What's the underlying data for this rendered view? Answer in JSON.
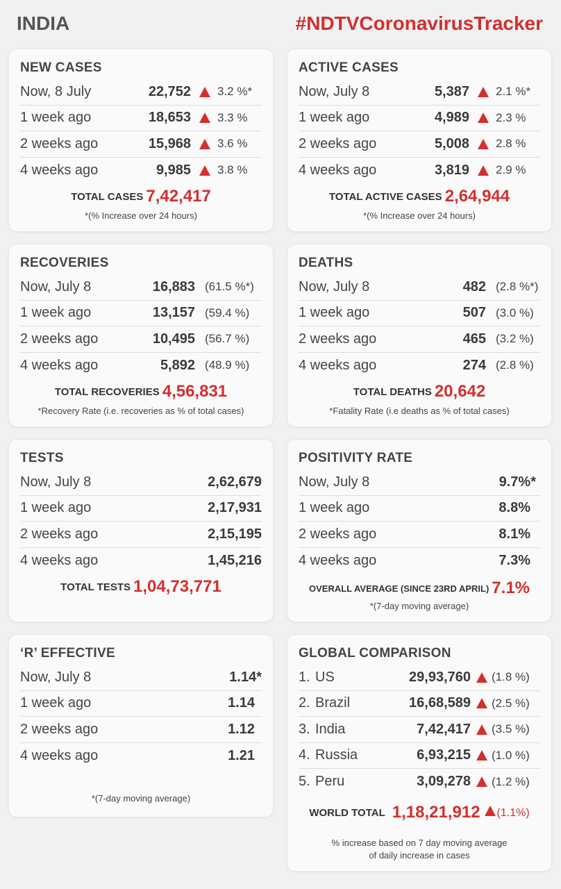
{
  "header": {
    "country": "INDIA",
    "hashtag": "#NDTVCoronavirusTracker"
  },
  "colors": {
    "accent": "#d32f2f"
  },
  "new_cases": {
    "title": "NEW CASES",
    "rows": [
      {
        "label": "Now, 8 July",
        "value": "22,752",
        "pct": "3.2 %*"
      },
      {
        "label": "1 week ago",
        "value": "18,653",
        "pct": "3.3 %"
      },
      {
        "label": "2 weeks ago",
        "value": "15,968",
        "pct": "3.6 %"
      },
      {
        "label": "4 weeks ago",
        "value": "9,985",
        "pct": "3.8 %"
      }
    ],
    "total_label": "TOTAL CASES",
    "total_value": "7,42,417",
    "note": "*(% Increase over 24 hours)"
  },
  "active_cases": {
    "title": "ACTIVE CASES",
    "rows": [
      {
        "label": "Now, July 8",
        "value": "5,387",
        "pct": "2.1 %*"
      },
      {
        "label": "1 week ago",
        "value": "4,989",
        "pct": "2.3 %"
      },
      {
        "label": "2 weeks ago",
        "value": "5,008",
        "pct": "2.8 %"
      },
      {
        "label": "4 weeks ago",
        "value": "3,819",
        "pct": "2.9 %"
      }
    ],
    "total_label": "TOTAL ACTIVE CASES",
    "total_value": "2,64,944",
    "note": "*(% Increase over 24 hours)"
  },
  "recoveries": {
    "title": "RECOVERIES",
    "rows": [
      {
        "label": "Now, July 8",
        "value": "16,883",
        "pct": "(61.5 %*)"
      },
      {
        "label": "1 week ago",
        "value": "13,157",
        "pct": "(59.4 %)"
      },
      {
        "label": "2 weeks ago",
        "value": "10,495",
        "pct": "(56.7 %)"
      },
      {
        "label": "4 weeks ago",
        "value": "5,892",
        "pct": "(48.9 %)"
      }
    ],
    "total_label": "TOTAL RECOVERIES",
    "total_value": "4,56,831",
    "note": "*Recovery Rate (i.e. recoveries as % of total cases)"
  },
  "deaths": {
    "title": "DEATHS",
    "rows": [
      {
        "label": "Now, July 8",
        "value": "482",
        "pct": "(2.8 %*)"
      },
      {
        "label": "1 week ago",
        "value": "507",
        "pct": "(3.0 %)"
      },
      {
        "label": "2 weeks ago",
        "value": "465",
        "pct": "(3.2 %)"
      },
      {
        "label": "4 weeks ago",
        "value": "274",
        "pct": "(2.8 %)"
      }
    ],
    "total_label": "TOTAL DEATHS",
    "total_value": "20,642",
    "note": "*Fatality Rate (i.e deaths as % of total cases)"
  },
  "tests": {
    "title": "TESTS",
    "rows": [
      {
        "label": "Now, July 8",
        "value": "2,62,679"
      },
      {
        "label": "1 week ago",
        "value": "2,17,931"
      },
      {
        "label": "2 weeks ago",
        "value": "2,15,195"
      },
      {
        "label": "4 weeks ago",
        "value": "1,45,216"
      }
    ],
    "total_label": "TOTAL TESTS",
    "total_value": "1,04,73,771"
  },
  "positivity": {
    "title": "POSITIVITY RATE",
    "rows": [
      {
        "label": "Now, July 8",
        "value": "9.7%*"
      },
      {
        "label": "1 week ago",
        "value": "8.8%"
      },
      {
        "label": "2 weeks ago",
        "value": "8.1%"
      },
      {
        "label": "4 weeks ago",
        "value": "7.3%"
      }
    ],
    "total_label": "OVERALL AVERAGE (SINCE 23RD APRIL)",
    "total_value": "7.1%",
    "note": "*(7-day moving average)"
  },
  "r_effective": {
    "title": "‘R’ EFFECTIVE",
    "rows": [
      {
        "label": "Now, July 8",
        "value": "1.14*"
      },
      {
        "label": "1 week ago",
        "value": "1.14"
      },
      {
        "label": "2 weeks ago",
        "value": "1.12"
      },
      {
        "label": "4 weeks ago",
        "value": "1.21"
      }
    ],
    "note": "*(7-day moving average)"
  },
  "global": {
    "title": "GLOBAL COMPARISON",
    "rows": [
      {
        "rank": "1.",
        "country": "US",
        "value": "29,93,760",
        "pct": "(1.8 %)"
      },
      {
        "rank": "2.",
        "country": "Brazil",
        "value": "16,68,589",
        "pct": "(2.5 %)"
      },
      {
        "rank": "3.",
        "country": "India",
        "value": "7,42,417",
        "pct": "(3.5 %)"
      },
      {
        "rank": "4.",
        "country": "Russia",
        "value": "6,93,215",
        "pct": "(1.0 %)"
      },
      {
        "rank": "5.",
        "country": "Peru",
        "value": "3,09,278",
        "pct": "(1.2 %)"
      }
    ],
    "total_label": "WORLD TOTAL",
    "total_value": "1,18,21,912",
    "total_pct": "(1.1%)",
    "note_line1": "% increase based on 7 day moving average",
    "note_line2": "of daily increase in cases"
  }
}
